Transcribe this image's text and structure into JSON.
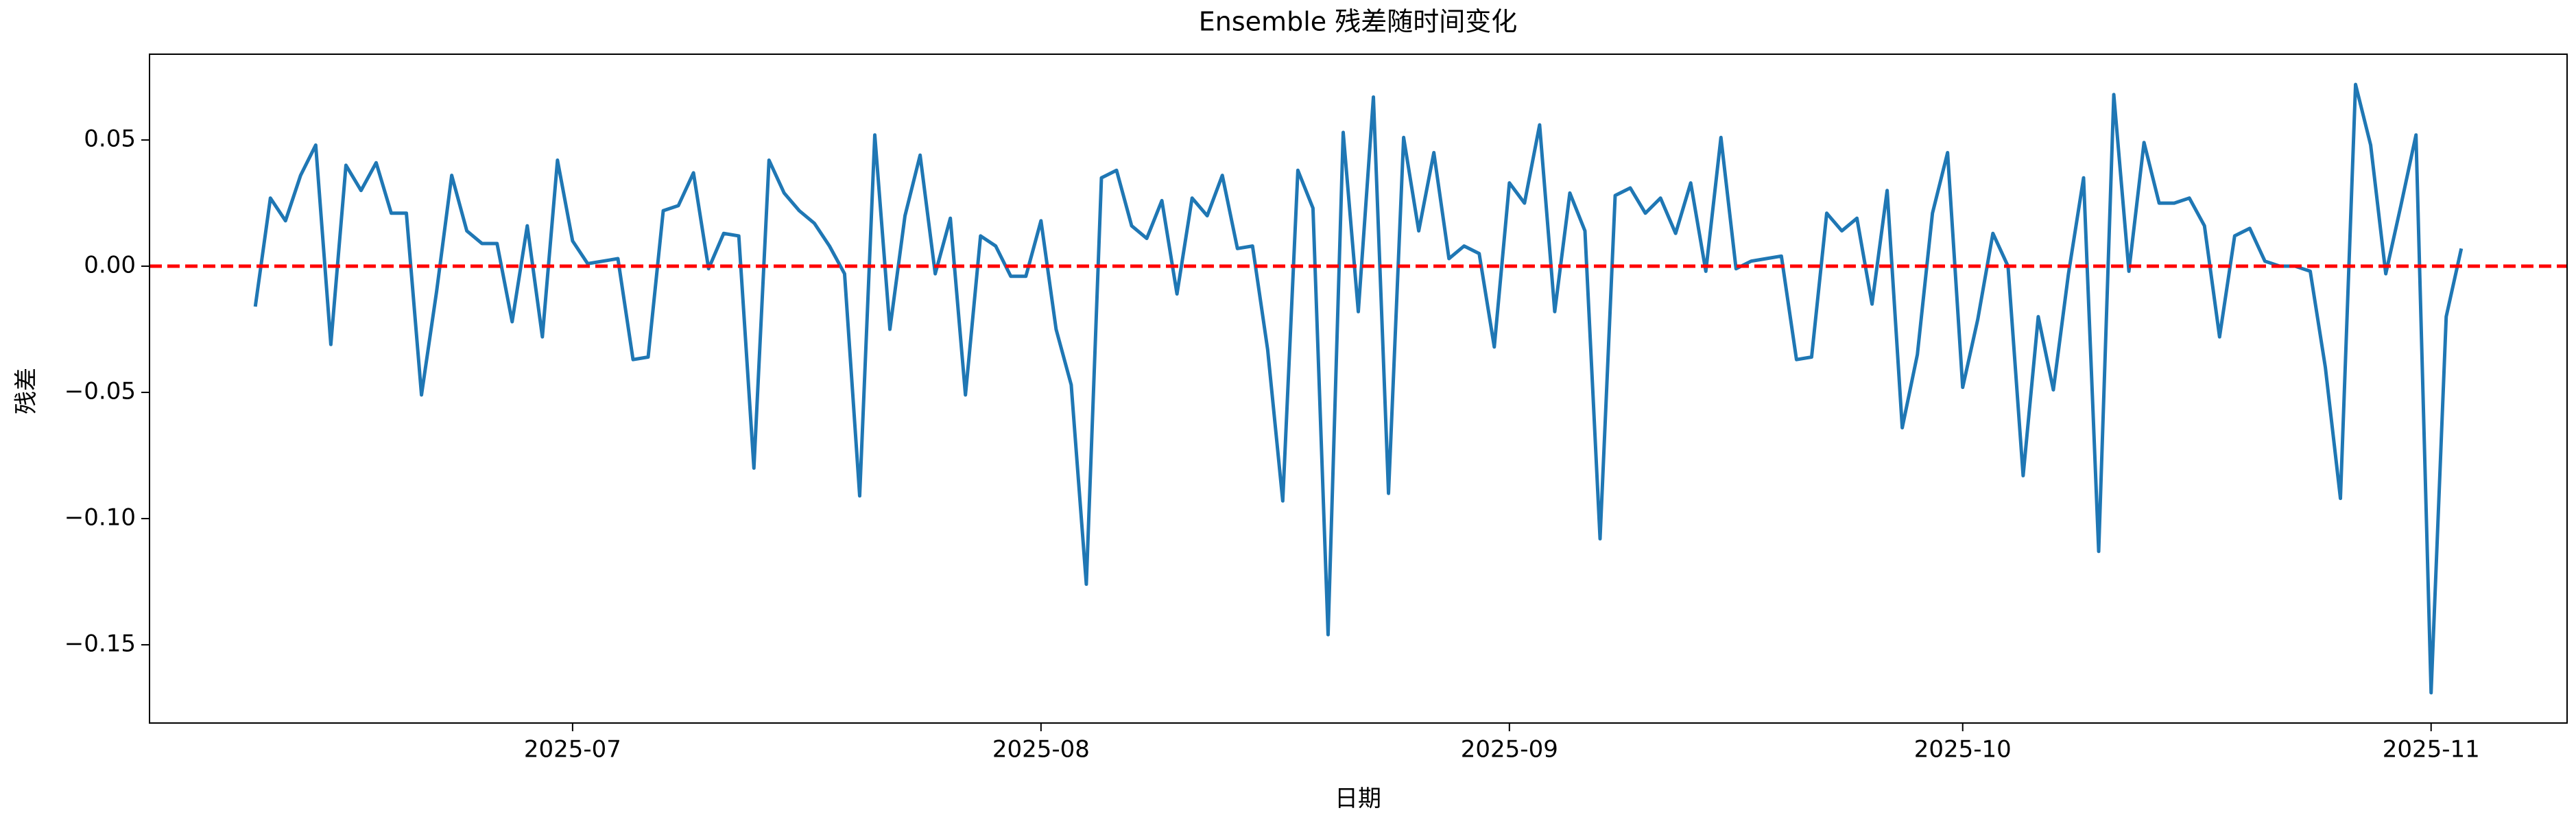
{
  "chart_data": {
    "type": "line",
    "title": "Ensemble 残差随时间变化",
    "xlabel": "日期",
    "ylabel": "残差",
    "x": [
      "2025-06-10",
      "2025-06-11",
      "2025-06-12",
      "2025-06-13",
      "2025-06-14",
      "2025-06-15",
      "2025-06-16",
      "2025-06-17",
      "2025-06-18",
      "2025-06-19",
      "2025-06-20",
      "2025-06-21",
      "2025-06-22",
      "2025-06-23",
      "2025-06-24",
      "2025-06-25",
      "2025-06-26",
      "2025-06-27",
      "2025-06-28",
      "2025-06-29",
      "2025-06-30",
      "2025-07-01",
      "2025-07-02",
      "2025-07-03",
      "2025-07-04",
      "2025-07-05",
      "2025-07-06",
      "2025-07-07",
      "2025-07-08",
      "2025-07-09",
      "2025-07-10",
      "2025-07-11",
      "2025-07-12",
      "2025-07-13",
      "2025-07-14",
      "2025-07-15",
      "2025-07-16",
      "2025-07-17",
      "2025-07-18",
      "2025-07-19",
      "2025-07-20",
      "2025-07-21",
      "2025-07-22",
      "2025-07-23",
      "2025-07-24",
      "2025-07-25",
      "2025-07-26",
      "2025-07-27",
      "2025-07-28",
      "2025-07-29",
      "2025-07-30",
      "2025-07-31",
      "2025-08-01",
      "2025-08-02",
      "2025-08-03",
      "2025-08-04",
      "2025-08-05",
      "2025-08-06",
      "2025-08-07",
      "2025-08-08",
      "2025-08-09",
      "2025-08-10",
      "2025-08-11",
      "2025-08-12",
      "2025-08-13",
      "2025-08-14",
      "2025-08-15",
      "2025-08-16",
      "2025-08-17",
      "2025-08-18",
      "2025-08-19",
      "2025-08-20",
      "2025-08-21",
      "2025-08-22",
      "2025-08-23",
      "2025-08-24",
      "2025-08-25",
      "2025-08-26",
      "2025-08-27",
      "2025-08-28",
      "2025-08-29",
      "2025-08-30",
      "2025-08-31",
      "2025-09-01",
      "2025-09-02",
      "2025-09-03",
      "2025-09-04",
      "2025-09-05",
      "2025-09-06",
      "2025-09-07",
      "2025-09-08",
      "2025-09-09",
      "2025-09-10",
      "2025-09-11",
      "2025-09-12",
      "2025-09-13",
      "2025-09-14",
      "2025-09-15",
      "2025-09-16",
      "2025-09-17",
      "2025-09-18",
      "2025-09-19",
      "2025-09-20",
      "2025-09-21",
      "2025-09-22",
      "2025-09-23",
      "2025-09-24",
      "2025-09-25",
      "2025-09-26",
      "2025-09-27",
      "2025-09-28",
      "2025-09-29",
      "2025-09-30",
      "2025-10-01",
      "2025-10-02",
      "2025-10-03",
      "2025-10-04",
      "2025-10-05",
      "2025-10-06",
      "2025-10-07",
      "2025-10-08",
      "2025-10-09",
      "2025-10-10",
      "2025-10-11",
      "2025-10-12",
      "2025-10-13",
      "2025-10-14",
      "2025-10-15",
      "2025-10-16",
      "2025-10-17",
      "2025-10-18",
      "2025-10-19",
      "2025-10-20",
      "2025-10-21",
      "2025-10-22",
      "2025-10-23",
      "2025-10-24",
      "2025-10-25",
      "2025-10-26",
      "2025-10-27",
      "2025-10-28",
      "2025-10-29",
      "2025-10-30",
      "2025-10-31",
      "2025-11-01",
      "2025-11-02",
      "2025-11-03"
    ],
    "series": [
      {
        "color": "#1f77b4",
        "values": [
          -0.016,
          0.027,
          0.018,
          0.036,
          0.048,
          -0.031,
          0.04,
          0.03,
          0.041,
          0.021,
          0.021,
          -0.051,
          -0.01,
          0.036,
          0.014,
          0.009,
          0.009,
          -0.022,
          0.016,
          -0.028,
          0.042,
          0.01,
          0.001,
          0.002,
          0.003,
          -0.037,
          -0.036,
          0.022,
          0.024,
          0.037,
          -0.001,
          0.013,
          0.012,
          -0.08,
          0.042,
          0.029,
          0.022,
          0.017,
          0.008,
          -0.003,
          -0.091,
          0.052,
          -0.025,
          0.02,
          0.044,
          -0.003,
          0.019,
          -0.051,
          0.012,
          0.008,
          -0.004,
          -0.004,
          0.018,
          -0.025,
          -0.047,
          -0.126,
          0.035,
          0.038,
          0.016,
          0.011,
          0.026,
          -0.011,
          0.027,
          0.02,
          0.036,
          0.007,
          0.008,
          -0.033,
          -0.093,
          0.038,
          0.023,
          -0.146,
          0.053,
          -0.018,
          0.067,
          -0.09,
          0.051,
          0.014,
          0.045,
          0.003,
          0.008,
          0.005,
          -0.032,
          0.033,
          0.025,
          0.056,
          -0.018,
          0.029,
          0.014,
          -0.108,
          0.028,
          0.031,
          0.021,
          0.027,
          0.013,
          0.033,
          -0.002,
          0.051,
          -0.001,
          0.002,
          0.003,
          0.004,
          -0.037,
          -0.036,
          0.021,
          0.014,
          0.019,
          -0.015,
          0.03,
          -0.064,
          -0.035,
          0.021,
          0.045,
          -0.048,
          -0.021,
          0.013,
          0.0,
          -0.083,
          -0.02,
          -0.049,
          -0.003,
          0.035,
          -0.113,
          0.068,
          -0.002,
          0.049,
          0.025,
          0.025,
          0.027,
          0.016,
          -0.028,
          0.012,
          0.015,
          0.002,
          0.0,
          0.0,
          -0.002,
          -0.04,
          -0.092,
          0.072,
          0.048,
          -0.003,
          0.024,
          0.052,
          -0.169,
          -0.02,
          0.007
        ]
      }
    ],
    "reference_line": {
      "y": 0,
      "color": "#ff0000",
      "style": "dashed"
    },
    "xlim": [
      "2025-06-03",
      "2025-11-10"
    ],
    "xticks": [
      {
        "value": "2025-07-01",
        "label": "2025-07"
      },
      {
        "value": "2025-08-01",
        "label": "2025-08"
      },
      {
        "value": "2025-09-01",
        "label": "2025-09"
      },
      {
        "value": "2025-10-01",
        "label": "2025-10"
      },
      {
        "value": "2025-11-01",
        "label": "2025-11"
      }
    ],
    "ylim": [
      -0.181,
      0.084
    ],
    "yticks": [
      {
        "value": -0.15,
        "label": "−0.15"
      },
      {
        "value": -0.1,
        "label": "−0.10"
      },
      {
        "value": -0.05,
        "label": "−0.05"
      },
      {
        "value": 0,
        "label": "0.00"
      },
      {
        "value": 0.05,
        "label": "0.05"
      }
    ],
    "grid": false
  }
}
